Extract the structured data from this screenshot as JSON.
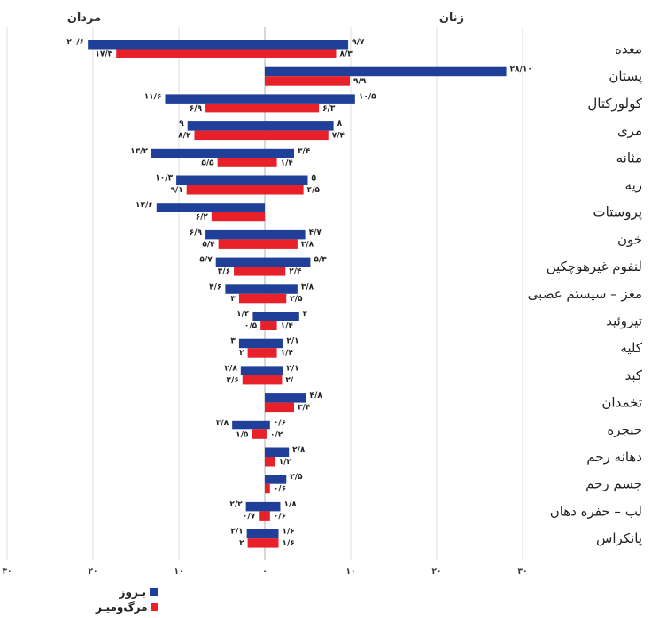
{
  "chart_data": {
    "type": "bar",
    "orientation": "horizontal-butterfly",
    "left_side_title": "مردان",
    "right_side_title": "زنان",
    "x_ticks": [
      "۳۰",
      "۲۰",
      "۱۰",
      "۰",
      "۱۰",
      "۲۰",
      "۳۰"
    ],
    "x_tick_values": [
      -30,
      -20,
      -10,
      0,
      10,
      20,
      30
    ],
    "xlim": [
      -30,
      30
    ],
    "colors": {
      "incidence": "#1f3f98",
      "mortality": "#e8202a"
    },
    "series": [
      {
        "name": "بـروز",
        "key": "incidence"
      },
      {
        "name": "مرگ‌ومیـر",
        "key": "mortality"
      }
    ],
    "categories": [
      {
        "label": "معده",
        "men": {
          "inc": 20.6,
          "mort": 17.3,
          "inc_label": "۲۰/۶",
          "mort_label": "۱۷/۳"
        },
        "women": {
          "inc": 9.7,
          "mort": 8.3,
          "inc_label": "۹/۷",
          "mort_label": "۸/۳"
        }
      },
      {
        "label": "پستان",
        "men": null,
        "women": {
          "inc": 28.1,
          "mort": 9.9,
          "inc_label": "۲۸/۱۰",
          "mort_label": "۹/۹"
        }
      },
      {
        "label": "کولورکتال",
        "men": {
          "inc": 11.6,
          "mort": 6.9,
          "inc_label": "۱۱/۶",
          "mort_label": "۶/۹"
        },
        "women": {
          "inc": 10.5,
          "mort": 6.3,
          "inc_label": "۱۰/۵",
          "mort_label": "۶/۳"
        }
      },
      {
        "label": "مری",
        "men": {
          "inc": 9,
          "mort": 8.2,
          "inc_label": "۹",
          "mort_label": "۸/۲"
        },
        "women": {
          "inc": 8,
          "mort": 7.4,
          "inc_label": "۸",
          "mort_label": "۷/۴"
        }
      },
      {
        "label": "مثانه",
        "men": {
          "inc": 13.2,
          "mort": 5.5,
          "inc_label": "۱۳/۲",
          "mort_label": "۵/۵"
        },
        "women": {
          "inc": 3.4,
          "mort": 1.4,
          "inc_label": "۳/۴",
          "mort_label": "۱/۴"
        }
      },
      {
        "label": "ریه",
        "men": {
          "inc": 10.3,
          "mort": 9.1,
          "inc_label": "۱۰/۳",
          "mort_label": "۹/۱"
        },
        "women": {
          "inc": 5,
          "mort": 4.5,
          "inc_label": "۵",
          "mort_label": "۴/۵"
        }
      },
      {
        "label": "پروستات",
        "men": {
          "inc": 12.6,
          "mort": 6.2,
          "inc_label": "۱۲/۶",
          "mort_label": "۶/۲"
        },
        "women": null
      },
      {
        "label": "خون",
        "men": {
          "inc": 6.9,
          "mort": 5.4,
          "inc_label": "۶/۹",
          "mort_label": "۵/۴"
        },
        "women": {
          "inc": 4.7,
          "mort": 3.8,
          "inc_label": "۴/۷",
          "mort_label": "۳/۸"
        }
      },
      {
        "label": "لنفوم غیرهوچکین",
        "men": {
          "inc": 5.7,
          "mort": 3.6,
          "inc_label": "۵/۷",
          "mort_label": "۳/۶"
        },
        "women": {
          "inc": 5.3,
          "mort": 2.4,
          "inc_label": "۵/۳",
          "mort_label": "۲/۴"
        }
      },
      {
        "label": "مغز – سیستم عصبی",
        "men": {
          "inc": 4.6,
          "mort": 3,
          "inc_label": "۴/۶",
          "mort_label": "۳"
        },
        "women": {
          "inc": 3.8,
          "mort": 2.5,
          "inc_label": "۳/۸",
          "mort_label": "۲/۵"
        }
      },
      {
        "label": "تیروئید",
        "men": {
          "inc": 1.4,
          "mort": 0.5,
          "inc_label": "۱/۴",
          "mort_label": "۰/۵"
        },
        "women": {
          "inc": 4,
          "mort": 1.4,
          "inc_label": "۴",
          "mort_label": "۱/۴"
        }
      },
      {
        "label": "کلیه",
        "men": {
          "inc": 3,
          "mort": 2,
          "inc_label": "۳",
          "mort_label": "۲"
        },
        "women": {
          "inc": 2.1,
          "mort": 1.4,
          "inc_label": "۲/۱",
          "mort_label": "۱/۴"
        }
      },
      {
        "label": "کبد",
        "men": {
          "inc": 2.8,
          "mort": 2.6,
          "inc_label": "۲/۸",
          "mort_label": "۲/۶"
        },
        "women": {
          "inc": 2.1,
          "mort": 2,
          "inc_label": "۲/۱",
          "mort_label": "۲/"
        }
      },
      {
        "label": "تخمدان",
        "men": null,
        "women": {
          "inc": 4.8,
          "mort": 3.4,
          "inc_label": "۴/۸",
          "mort_label": "۳/۴"
        }
      },
      {
        "label": "حنجره",
        "men": {
          "inc": 3.8,
          "mort": 1.5,
          "inc_label": "۳/۸",
          "mort_label": "۱/۵"
        },
        "women": {
          "inc": 0.6,
          "mort": 0.2,
          "inc_label": "۰/۶",
          "mort_label": "۰/۲"
        }
      },
      {
        "label": "دهانه رحم",
        "men": null,
        "women": {
          "inc": 2.8,
          "mort": 1.2,
          "inc_label": "۲/۸",
          "mort_label": "۱/۲"
        }
      },
      {
        "label": "جسم رحم",
        "men": null,
        "women": {
          "inc": 2.5,
          "mort": 0.6,
          "inc_label": "۲/۵",
          "mort_label": "۰/۶"
        }
      },
      {
        "label": "لب – حفره دهان",
        "men": {
          "inc": 2.2,
          "mort": 0.7,
          "inc_label": "۲/۲",
          "mort_label": "۰/۷"
        },
        "women": {
          "inc": 1.8,
          "mort": 0.6,
          "inc_label": "۱/۸",
          "mort_label": "۰/۶"
        }
      },
      {
        "label": "پانکراس",
        "men": {
          "inc": 2.1,
          "mort": 2,
          "inc_label": "۲/۱",
          "mort_label": "۲"
        },
        "women": {
          "inc": 1.6,
          "mort": 1.6,
          "inc_label": "۱/۶",
          "mort_label": "۱/۶"
        }
      }
    ]
  }
}
